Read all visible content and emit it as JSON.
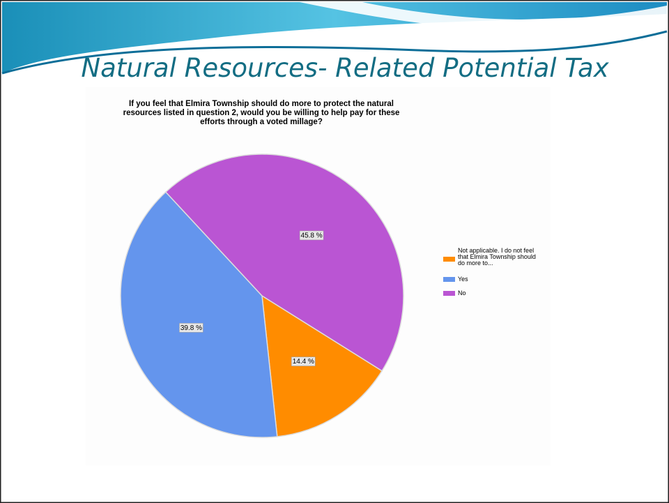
{
  "slide_title": "Natural Resources- Related Potential Tax",
  "chart_data": {
    "type": "pie",
    "title": "If you feel that Elmira Township should do more to protect the natural resources listed in question 2, would you be willing to help pay for these efforts through a voted millage?",
    "categories": [
      "Not applicable.  I do not feel that Elmira Township should do more to...",
      "Yes",
      "No"
    ],
    "values": [
      14.4,
      39.8,
      45.8
    ],
    "value_labels": [
      "14.4 %",
      "39.8 %",
      "45.8 %"
    ],
    "colors": [
      "#ff8c00",
      "#6495ed",
      "#ba55d3"
    ],
    "legend": "right"
  }
}
